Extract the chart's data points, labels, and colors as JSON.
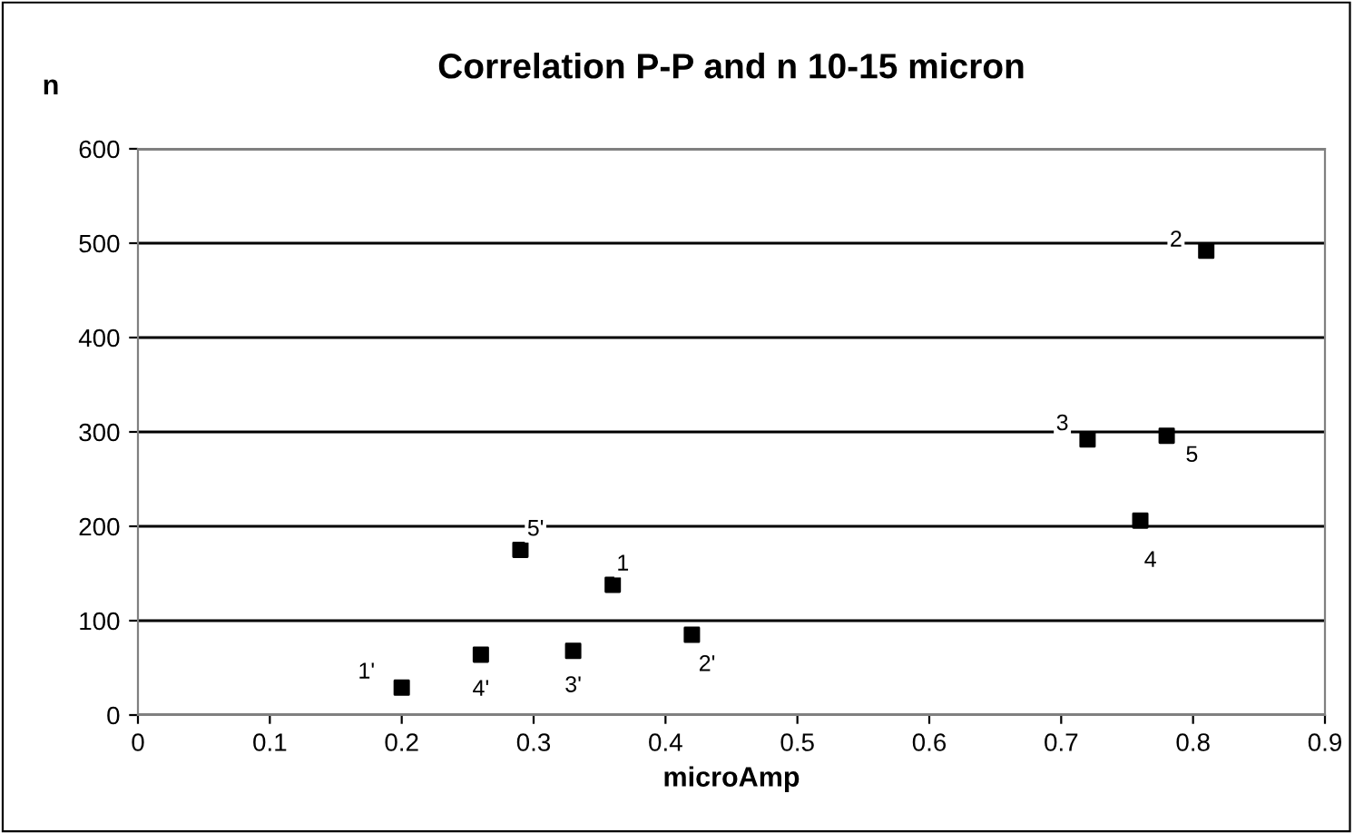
{
  "chart_data": {
    "type": "scatter",
    "title": "Correlation P-P and n 10-15 micron",
    "xlabel": "microAmp",
    "ylabel": "n",
    "x": [
      0.36,
      0.81,
      0.72,
      0.76,
      0.78,
      0.2,
      0.42,
      0.33,
      0.26,
      0.29
    ],
    "series": [
      {
        "color": "#000000",
        "values": [
          138,
          492,
          292,
          206,
          296,
          29,
          85,
          68,
          64,
          175
        ]
      }
    ],
    "annotations": [
      {
        "text": "1",
        "x": 0.36,
        "y": 138
      },
      {
        "text": "2",
        "x": 0.81,
        "y": 492
      },
      {
        "text": "3",
        "x": 0.72,
        "y": 292
      },
      {
        "text": "4",
        "x": 0.76,
        "y": 206
      },
      {
        "text": "5",
        "x": 0.78,
        "y": 296
      },
      {
        "text": "1'",
        "x": 0.2,
        "y": 29
      },
      {
        "text": "2'",
        "x": 0.42,
        "y": 85
      },
      {
        "text": "3'",
        "x": 0.33,
        "y": 68
      },
      {
        "text": "4'",
        "x": 0.26,
        "y": 64
      },
      {
        "text": "5'",
        "x": 0.29,
        "y": 175
      }
    ],
    "xlim": [
      0,
      0.9
    ],
    "xticks": [
      0,
      0.1,
      0.2,
      0.3,
      0.4,
      0.5,
      0.6,
      0.7,
      0.8,
      0.9
    ],
    "ylim": [
      0,
      600
    ],
    "yticks": [
      0,
      100,
      200,
      300,
      400,
      500,
      600
    ],
    "grid": "y",
    "marker": "square",
    "legend": false
  }
}
